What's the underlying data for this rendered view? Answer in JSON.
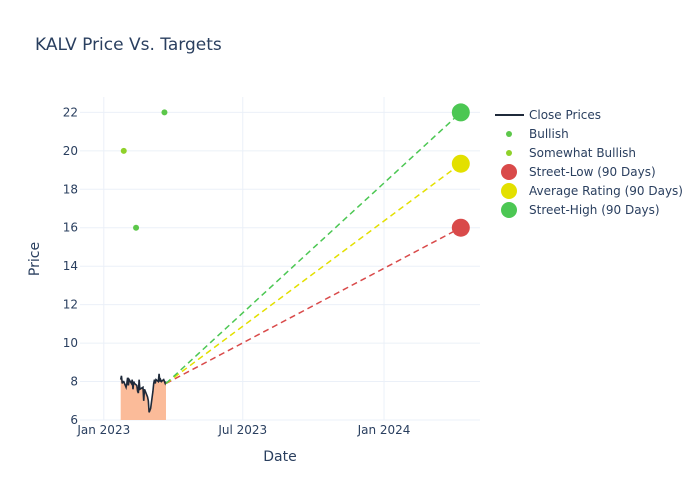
{
  "chart_data": {
    "type": "line",
    "title": "KALV Price Vs. Targets",
    "xlabel": "Date",
    "ylabel": "Price",
    "ylim": [
      6,
      22.8
    ],
    "xlim": [
      "2022-12-01",
      "2024-05-05"
    ],
    "yticks": [
      6,
      8,
      10,
      12,
      14,
      16,
      18,
      20,
      22
    ],
    "xticks": [
      {
        "date": "2023-01-01",
        "label": "Jan 2023"
      },
      {
        "date": "2023-07-01",
        "label": "Jul 2023"
      },
      {
        "date": "2024-01-01",
        "label": "Jan 2024"
      }
    ],
    "grid": true,
    "legend_position": "right",
    "series": [
      {
        "name": "Close Prices",
        "kind": "line-area",
        "color": "#1f2a3a",
        "fill": "#fbbb99",
        "points": [
          [
            "2023-01-23",
            8.1
          ],
          [
            "2023-01-24",
            8.3
          ],
          [
            "2023-01-25",
            7.9
          ],
          [
            "2023-01-26",
            8.0
          ],
          [
            "2023-01-27",
            8.0
          ],
          [
            "2023-01-30",
            7.7
          ],
          [
            "2023-01-31",
            7.9
          ],
          [
            "2023-02-01",
            8.2
          ],
          [
            "2023-02-02",
            7.8
          ],
          [
            "2023-02-03",
            8.1
          ],
          [
            "2023-02-06",
            7.9
          ],
          [
            "2023-02-07",
            8.1
          ],
          [
            "2023-02-08",
            7.6
          ],
          [
            "2023-02-09",
            8.0
          ],
          [
            "2023-02-10",
            7.9
          ],
          [
            "2023-02-13",
            7.8
          ],
          [
            "2023-02-14",
            7.5
          ],
          [
            "2023-02-15",
            7.4
          ],
          [
            "2023-02-16",
            8.1
          ],
          [
            "2023-02-17",
            7.6
          ],
          [
            "2023-02-21",
            7.7
          ],
          [
            "2023-02-22",
            7.0
          ],
          [
            "2023-02-23",
            7.6
          ],
          [
            "2023-02-24",
            7.5
          ],
          [
            "2023-02-27",
            7.2
          ],
          [
            "2023-02-28",
            7.0
          ],
          [
            "2023-03-01",
            6.4
          ],
          [
            "2023-03-02",
            6.5
          ],
          [
            "2023-03-03",
            6.6
          ],
          [
            "2023-03-06",
            7.5
          ],
          [
            "2023-03-07",
            7.9
          ],
          [
            "2023-03-08",
            8.1
          ],
          [
            "2023-03-09",
            7.9
          ],
          [
            "2023-03-10",
            8.1
          ],
          [
            "2023-03-13",
            8.0
          ],
          [
            "2023-03-14",
            8.4
          ],
          [
            "2023-03-15",
            8.0
          ],
          [
            "2023-03-16",
            8.1
          ],
          [
            "2023-03-17",
            8.0
          ],
          [
            "2023-03-20",
            8.1
          ],
          [
            "2023-03-21",
            8.0
          ],
          [
            "2023-03-22",
            7.9
          ],
          [
            "2023-03-23",
            8.0
          ]
        ]
      },
      {
        "name": "Bullish",
        "kind": "markers",
        "color": "#5cc74a",
        "points": [
          [
            "2023-02-12",
            16.0
          ],
          [
            "2023-03-21",
            22.0
          ]
        ]
      },
      {
        "name": "Somewhat Bullish",
        "kind": "markers",
        "color": "#8fd12a",
        "points": [
          [
            "2023-01-27",
            20.0
          ]
        ]
      },
      {
        "name": "Street-Low (90 Days)",
        "kind": "target",
        "color": "#d94a4a",
        "from": [
          "2023-03-23",
          7.9
        ],
        "to": [
          "2024-04-10",
          16.0
        ]
      },
      {
        "name": "Average Rating (90 Days)",
        "kind": "target",
        "color": "#e3e000",
        "from": [
          "2023-03-23",
          7.9
        ],
        "to": [
          "2024-04-10",
          19.33
        ]
      },
      {
        "name": "Street-High (90 Days)",
        "kind": "target",
        "color": "#4cc753",
        "from": [
          "2023-03-23",
          7.9
        ],
        "to": [
          "2024-04-10",
          22.0
        ]
      }
    ]
  }
}
